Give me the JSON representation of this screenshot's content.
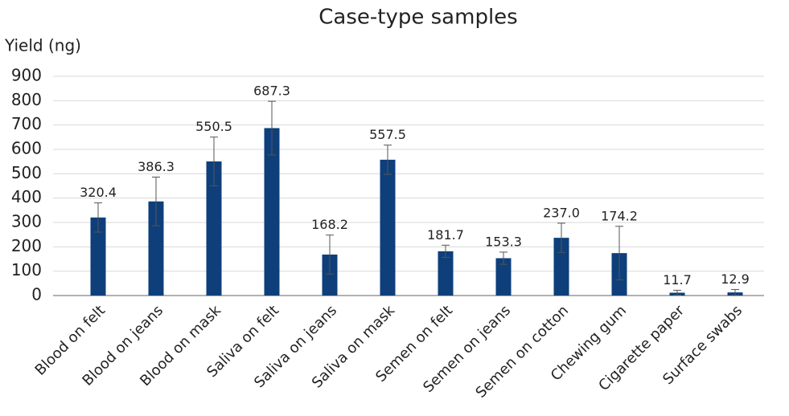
{
  "chart_data": {
    "type": "bar",
    "title": "Case-type samples",
    "y_label": "Yield (ng)",
    "categories": [
      "Blood on felt",
      "Blood on jeans",
      "Blood on mask",
      "Saliva on felt",
      "Saliva on jeans",
      "Saliva on mask",
      "Semen on felt",
      "Semen on jeans",
      "Semen on cotton",
      "Chewing gum",
      "Cigarette paper",
      "Surface swabs"
    ],
    "values": [
      320.4,
      386.3,
      550.5,
      687.3,
      168.2,
      557.5,
      181.7,
      153.3,
      237.0,
      174.2,
      11.7,
      12.9
    ],
    "value_labels": [
      "320.4",
      "386.3",
      "550.5",
      "687.3",
      "168.2",
      "557.5",
      "181.7",
      "153.3",
      "237.0",
      "174.2",
      "11.7",
      "12.9"
    ],
    "errors": [
      60,
      100,
      100,
      110,
      80,
      60,
      25,
      25,
      60,
      110,
      10,
      12
    ],
    "color": "#0e3f7a",
    "ylim": [
      0,
      900
    ],
    "yticks": [
      0,
      100,
      200,
      300,
      400,
      500,
      600,
      700,
      800,
      900
    ],
    "grid": true
  }
}
